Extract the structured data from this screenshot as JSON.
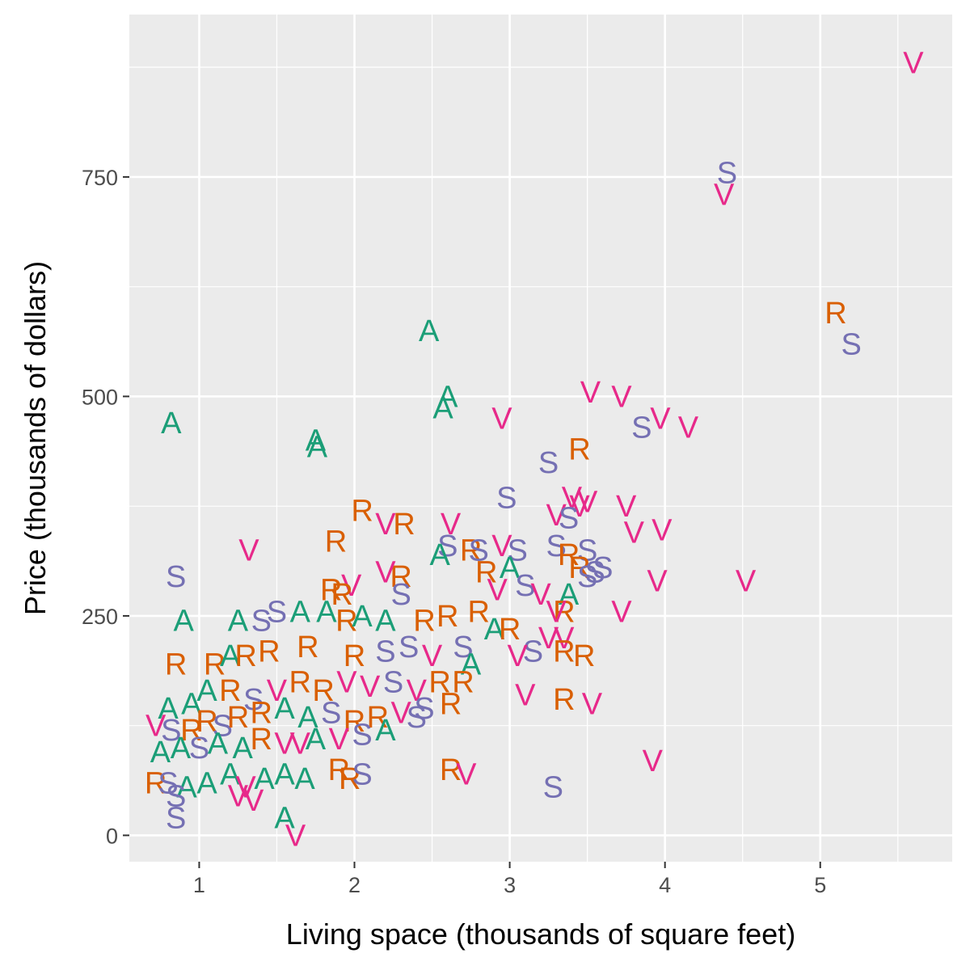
{
  "chart_data": {
    "type": "scatter",
    "title": "",
    "xlabel": "Living space (thousands of square feet)",
    "ylabel": "Price (thousands of dollars)",
    "xlim": [
      0.55,
      5.85
    ],
    "ylim": [
      -30,
      935
    ],
    "x_ticks": [
      1,
      2,
      3,
      4,
      5
    ],
    "x_tick_labels": [
      "1",
      "2",
      "3",
      "4",
      "5"
    ],
    "y_ticks": [
      0,
      250,
      500,
      750
    ],
    "y_tick_labels": [
      "0",
      "250",
      "500",
      "750"
    ],
    "grid": true,
    "legend": "none",
    "colors": {
      "A": "#1b9e77",
      "R": "#d95f02",
      "S": "#7570b3",
      "V": "#e7298a",
      "panel": "#ebebeb",
      "grid": "#ffffff"
    },
    "points": [
      {
        "x": 5.6,
        "y": 880,
        "g": "V"
      },
      {
        "x": 4.4,
        "y": 755,
        "g": "S"
      },
      {
        "x": 4.38,
        "y": 730,
        "g": "V"
      },
      {
        "x": 5.1,
        "y": 595,
        "g": "R"
      },
      {
        "x": 5.2,
        "y": 560,
        "g": "S"
      },
      {
        "x": 2.48,
        "y": 575,
        "g": "A"
      },
      {
        "x": 2.6,
        "y": 500,
        "g": "A"
      },
      {
        "x": 2.57,
        "y": 487,
        "g": "A"
      },
      {
        "x": 0.82,
        "y": 470,
        "g": "A"
      },
      {
        "x": 1.75,
        "y": 450,
        "g": "A"
      },
      {
        "x": 1.76,
        "y": 443,
        "g": "A"
      },
      {
        "x": 3.52,
        "y": 505,
        "g": "V"
      },
      {
        "x": 3.72,
        "y": 500,
        "g": "V"
      },
      {
        "x": 3.97,
        "y": 475,
        "g": "V"
      },
      {
        "x": 4.15,
        "y": 465,
        "g": "V"
      },
      {
        "x": 3.85,
        "y": 465,
        "g": "S"
      },
      {
        "x": 2.95,
        "y": 475,
        "g": "V"
      },
      {
        "x": 3.45,
        "y": 440,
        "g": "R"
      },
      {
        "x": 3.25,
        "y": 425,
        "g": "S"
      },
      {
        "x": 2.98,
        "y": 385,
        "g": "S"
      },
      {
        "x": 3.4,
        "y": 385,
        "g": "V"
      },
      {
        "x": 3.45,
        "y": 375,
        "g": "V"
      },
      {
        "x": 3.5,
        "y": 380,
        "g": "V"
      },
      {
        "x": 3.75,
        "y": 375,
        "g": "V"
      },
      {
        "x": 3.3,
        "y": 365,
        "g": "V"
      },
      {
        "x": 3.38,
        "y": 362,
        "g": "S"
      },
      {
        "x": 3.8,
        "y": 345,
        "g": "V"
      },
      {
        "x": 3.98,
        "y": 348,
        "g": "V"
      },
      {
        "x": 2.05,
        "y": 370,
        "g": "R"
      },
      {
        "x": 2.2,
        "y": 355,
        "g": "V"
      },
      {
        "x": 2.32,
        "y": 355,
        "g": "R"
      },
      {
        "x": 2.62,
        "y": 355,
        "g": "V"
      },
      {
        "x": 1.88,
        "y": 335,
        "g": "R"
      },
      {
        "x": 1.32,
        "y": 325,
        "g": "V"
      },
      {
        "x": 0.85,
        "y": 295,
        "g": "S"
      },
      {
        "x": 2.6,
        "y": 330,
        "g": "S"
      },
      {
        "x": 2.55,
        "y": 320,
        "g": "A"
      },
      {
        "x": 2.75,
        "y": 325,
        "g": "R"
      },
      {
        "x": 2.8,
        "y": 325,
        "g": "S"
      },
      {
        "x": 2.95,
        "y": 330,
        "g": "V"
      },
      {
        "x": 3.05,
        "y": 325,
        "g": "S"
      },
      {
        "x": 3.3,
        "y": 330,
        "g": "S"
      },
      {
        "x": 3.38,
        "y": 320,
        "g": "R"
      },
      {
        "x": 3.5,
        "y": 325,
        "g": "S"
      },
      {
        "x": 3.45,
        "y": 305,
        "g": "R"
      },
      {
        "x": 3.55,
        "y": 300,
        "g": "S"
      },
      {
        "x": 3.6,
        "y": 305,
        "g": "S"
      },
      {
        "x": 3.5,
        "y": 295,
        "g": "S"
      },
      {
        "x": 3.38,
        "y": 275,
        "g": "A"
      },
      {
        "x": 3.95,
        "y": 290,
        "g": "V"
      },
      {
        "x": 4.52,
        "y": 290,
        "g": "V"
      },
      {
        "x": 2.3,
        "y": 295,
        "g": "R"
      },
      {
        "x": 2.3,
        "y": 275,
        "g": "S"
      },
      {
        "x": 2.2,
        "y": 300,
        "g": "V"
      },
      {
        "x": 1.98,
        "y": 285,
        "g": "V"
      },
      {
        "x": 1.85,
        "y": 280,
        "g": "R"
      },
      {
        "x": 1.92,
        "y": 275,
        "g": "R"
      },
      {
        "x": 2.85,
        "y": 300,
        "g": "R"
      },
      {
        "x": 3.0,
        "y": 305,
        "g": "A"
      },
      {
        "x": 2.92,
        "y": 280,
        "g": "V"
      },
      {
        "x": 3.1,
        "y": 285,
        "g": "S"
      },
      {
        "x": 3.2,
        "y": 275,
        "g": "V"
      },
      {
        "x": 3.35,
        "y": 255,
        "g": "R"
      },
      {
        "x": 3.3,
        "y": 255,
        "g": "V"
      },
      {
        "x": 3.72,
        "y": 255,
        "g": "V"
      },
      {
        "x": 3.35,
        "y": 225,
        "g": "V"
      },
      {
        "x": 3.25,
        "y": 225,
        "g": "V"
      },
      {
        "x": 3.15,
        "y": 210,
        "g": "S"
      },
      {
        "x": 3.35,
        "y": 210,
        "g": "R"
      },
      {
        "x": 3.48,
        "y": 205,
        "g": "R"
      },
      {
        "x": 3.05,
        "y": 205,
        "g": "V"
      },
      {
        "x": 3.1,
        "y": 160,
        "g": "V"
      },
      {
        "x": 3.35,
        "y": 155,
        "g": "R"
      },
      {
        "x": 3.53,
        "y": 150,
        "g": "V"
      },
      {
        "x": 3.92,
        "y": 85,
        "g": "V"
      },
      {
        "x": 3.28,
        "y": 55,
        "g": "S"
      },
      {
        "x": 2.62,
        "y": 75,
        "g": "R"
      },
      {
        "x": 2.72,
        "y": 70,
        "g": "V"
      },
      {
        "x": 1.62,
        "y": 0,
        "g": "V"
      },
      {
        "x": 1.55,
        "y": 20,
        "g": "A"
      },
      {
        "x": 0.85,
        "y": 20,
        "g": "S"
      },
      {
        "x": 1.25,
        "y": 245,
        "g": "A"
      },
      {
        "x": 0.9,
        "y": 245,
        "g": "A"
      },
      {
        "x": 1.4,
        "y": 245,
        "g": "S"
      },
      {
        "x": 1.5,
        "y": 255,
        "g": "S"
      },
      {
        "x": 1.65,
        "y": 255,
        "g": "A"
      },
      {
        "x": 1.82,
        "y": 255,
        "g": "A"
      },
      {
        "x": 1.95,
        "y": 245,
        "g": "R"
      },
      {
        "x": 2.05,
        "y": 250,
        "g": "A"
      },
      {
        "x": 2.2,
        "y": 245,
        "g": "A"
      },
      {
        "x": 2.45,
        "y": 245,
        "g": "R"
      },
      {
        "x": 2.6,
        "y": 250,
        "g": "R"
      },
      {
        "x": 2.8,
        "y": 255,
        "g": "R"
      },
      {
        "x": 2.9,
        "y": 235,
        "g": "A"
      },
      {
        "x": 3.0,
        "y": 235,
        "g": "R"
      },
      {
        "x": 0.85,
        "y": 195,
        "g": "R"
      },
      {
        "x": 1.1,
        "y": 195,
        "g": "R"
      },
      {
        "x": 1.2,
        "y": 205,
        "g": "A"
      },
      {
        "x": 1.3,
        "y": 205,
        "g": "R"
      },
      {
        "x": 1.45,
        "y": 210,
        "g": "R"
      },
      {
        "x": 1.7,
        "y": 215,
        "g": "R"
      },
      {
        "x": 2.0,
        "y": 205,
        "g": "R"
      },
      {
        "x": 2.2,
        "y": 210,
        "g": "S"
      },
      {
        "x": 2.35,
        "y": 215,
        "g": "S"
      },
      {
        "x": 2.5,
        "y": 205,
        "g": "V"
      },
      {
        "x": 2.7,
        "y": 215,
        "g": "S"
      },
      {
        "x": 2.75,
        "y": 195,
        "g": "A"
      },
      {
        "x": 0.8,
        "y": 145,
        "g": "A"
      },
      {
        "x": 0.95,
        "y": 150,
        "g": "A"
      },
      {
        "x": 1.05,
        "y": 165,
        "g": "A"
      },
      {
        "x": 1.2,
        "y": 165,
        "g": "R"
      },
      {
        "x": 1.35,
        "y": 155,
        "g": "S"
      },
      {
        "x": 1.5,
        "y": 165,
        "g": "V"
      },
      {
        "x": 1.65,
        "y": 175,
        "g": "R"
      },
      {
        "x": 1.8,
        "y": 165,
        "g": "R"
      },
      {
        "x": 1.95,
        "y": 175,
        "g": "V"
      },
      {
        "x": 2.1,
        "y": 170,
        "g": "V"
      },
      {
        "x": 2.25,
        "y": 175,
        "g": "S"
      },
      {
        "x": 2.4,
        "y": 165,
        "g": "V"
      },
      {
        "x": 2.55,
        "y": 175,
        "g": "R"
      },
      {
        "x": 2.7,
        "y": 175,
        "g": "R"
      },
      {
        "x": 2.45,
        "y": 145,
        "g": "S"
      },
      {
        "x": 2.4,
        "y": 135,
        "g": "S"
      },
      {
        "x": 2.62,
        "y": 150,
        "g": "R"
      },
      {
        "x": 0.72,
        "y": 125,
        "g": "V"
      },
      {
        "x": 0.82,
        "y": 120,
        "g": "S"
      },
      {
        "x": 0.95,
        "y": 120,
        "g": "R"
      },
      {
        "x": 1.05,
        "y": 130,
        "g": "R"
      },
      {
        "x": 1.15,
        "y": 125,
        "g": "S"
      },
      {
        "x": 1.25,
        "y": 135,
        "g": "R"
      },
      {
        "x": 1.4,
        "y": 140,
        "g": "R"
      },
      {
        "x": 1.55,
        "y": 145,
        "g": "A"
      },
      {
        "x": 1.7,
        "y": 135,
        "g": "A"
      },
      {
        "x": 1.85,
        "y": 140,
        "g": "S"
      },
      {
        "x": 2.0,
        "y": 130,
        "g": "R"
      },
      {
        "x": 2.15,
        "y": 135,
        "g": "R"
      },
      {
        "x": 2.3,
        "y": 140,
        "g": "V"
      },
      {
        "x": 0.75,
        "y": 95,
        "g": "A"
      },
      {
        "x": 0.88,
        "y": 100,
        "g": "A"
      },
      {
        "x": 1.0,
        "y": 100,
        "g": "S"
      },
      {
        "x": 1.12,
        "y": 105,
        "g": "A"
      },
      {
        "x": 1.28,
        "y": 100,
        "g": "A"
      },
      {
        "x": 1.4,
        "y": 110,
        "g": "R"
      },
      {
        "x": 1.55,
        "y": 105,
        "g": "V"
      },
      {
        "x": 1.65,
        "y": 105,
        "g": "V"
      },
      {
        "x": 1.75,
        "y": 110,
        "g": "A"
      },
      {
        "x": 1.9,
        "y": 110,
        "g": "V"
      },
      {
        "x": 2.05,
        "y": 115,
        "g": "S"
      },
      {
        "x": 2.2,
        "y": 120,
        "g": "A"
      },
      {
        "x": 0.72,
        "y": 60,
        "g": "R"
      },
      {
        "x": 0.8,
        "y": 60,
        "g": "S"
      },
      {
        "x": 0.92,
        "y": 55,
        "g": "A"
      },
      {
        "x": 1.05,
        "y": 60,
        "g": "A"
      },
      {
        "x": 1.2,
        "y": 70,
        "g": "A"
      },
      {
        "x": 1.3,
        "y": 55,
        "g": "V"
      },
      {
        "x": 1.42,
        "y": 65,
        "g": "A"
      },
      {
        "x": 1.55,
        "y": 70,
        "g": "A"
      },
      {
        "x": 1.68,
        "y": 65,
        "g": "A"
      },
      {
        "x": 1.9,
        "y": 75,
        "g": "R"
      },
      {
        "x": 1.97,
        "y": 65,
        "g": "R"
      },
      {
        "x": 2.05,
        "y": 70,
        "g": "S"
      },
      {
        "x": 1.25,
        "y": 45,
        "g": "V"
      },
      {
        "x": 1.35,
        "y": 40,
        "g": "V"
      },
      {
        "x": 0.85,
        "y": 45,
        "g": "S"
      }
    ]
  }
}
